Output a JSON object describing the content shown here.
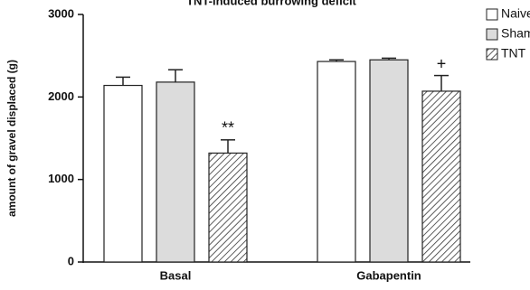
{
  "chart_data": {
    "type": "bar",
    "title": "TNT-induced burrowing deficit",
    "ylabel": "amount of gravel displaced (g)",
    "categories": [
      "Basal",
      "Gabapentin"
    ],
    "series": [
      {
        "name": "Naive",
        "color": "#ffffff",
        "hatch": false,
        "values": [
          2140,
          2430
        ],
        "errors": [
          100,
          20
        ]
      },
      {
        "name": "Sham",
        "color": "#dcdcdc",
        "hatch": false,
        "values": [
          2180,
          2450
        ],
        "errors": [
          150,
          20
        ]
      },
      {
        "name": "TNT",
        "color": "#ffffff",
        "hatch": true,
        "values": [
          1320,
          2070
        ],
        "errors": [
          160,
          190
        ],
        "annotations": [
          "**",
          "+"
        ]
      }
    ],
    "ylim": [
      0,
      3000
    ],
    "yticks": [
      0,
      1000,
      2000,
      3000
    ],
    "grid": false,
    "legend": "right"
  }
}
